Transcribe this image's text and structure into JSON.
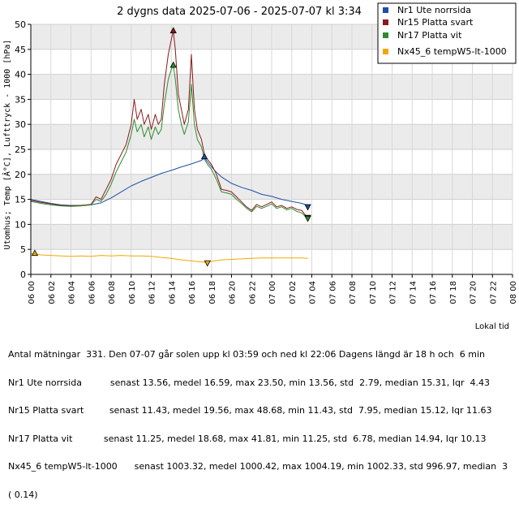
{
  "chart_data": {
    "type": "line",
    "title": "2 dygns data  2025-07-06 - 2025-07-07 kl 3:34",
    "ylabel": "Utomhus; Temp [Â°C], Lufttryck - 1000 [hPa]",
    "xlabel": "Lokal tid",
    "ylim": [
      0,
      50
    ],
    "yticks": [
      "0",
      "5",
      "10",
      "15",
      "20",
      "25",
      "30",
      "35",
      "40",
      "45",
      "50"
    ],
    "xticks": [
      "06 00",
      "06 02",
      "06 04",
      "06 06",
      "06 08",
      "06 10",
      "06 12",
      "06 14",
      "06 16",
      "06 18",
      "06 20",
      "06 22",
      "07 00",
      "07 02",
      "07 04",
      "07 06",
      "07 08",
      "07 10",
      "07 12",
      "07 14",
      "07 16",
      "07 18",
      "07 20",
      "07 22",
      "08 00"
    ],
    "grid": true,
    "legend_position": "top-right",
    "series": [
      {
        "name": "Nr1 Ute norrsida",
        "color": "#1f4fa8",
        "points": [
          [
            0,
            15.0
          ],
          [
            1,
            14.6
          ],
          [
            2,
            14.2
          ],
          [
            3,
            13.9
          ],
          [
            4,
            13.8
          ],
          [
            5,
            13.8
          ],
          [
            6,
            13.9
          ],
          [
            7,
            14.3
          ],
          [
            8,
            15.3
          ],
          [
            9,
            16.5
          ],
          [
            10,
            17.7
          ],
          [
            11,
            18.6
          ],
          [
            12,
            19.4
          ],
          [
            13,
            20.2
          ],
          [
            14,
            20.8
          ],
          [
            15,
            21.5
          ],
          [
            16,
            22.1
          ],
          [
            17,
            22.8
          ],
          [
            17.3,
            23.3
          ],
          [
            17.8,
            22.0
          ],
          [
            18.4,
            20.6
          ],
          [
            19,
            19.5
          ],
          [
            20,
            18.2
          ],
          [
            21,
            17.4
          ],
          [
            22,
            16.8
          ],
          [
            23,
            16.0
          ],
          [
            24,
            15.6
          ],
          [
            25,
            15.0
          ],
          [
            26,
            14.6
          ],
          [
            27,
            14.2
          ],
          [
            27.6,
            13.8
          ]
        ]
      },
      {
        "name": "Nr15 Platta svart",
        "color": "#8b1a1a",
        "points": [
          [
            0,
            14.8
          ],
          [
            1,
            14.4
          ],
          [
            2,
            14.1
          ],
          [
            3,
            13.8
          ],
          [
            4,
            13.7
          ],
          [
            5,
            13.8
          ],
          [
            6,
            14.0
          ],
          [
            6.5,
            15.5
          ],
          [
            7,
            15.0
          ],
          [
            7.5,
            17.0
          ],
          [
            8,
            19.0
          ],
          [
            8.5,
            22.0
          ],
          [
            9,
            24.0
          ],
          [
            9.5,
            26.0
          ],
          [
            10,
            30.0
          ],
          [
            10.3,
            35.0
          ],
          [
            10.6,
            31.0
          ],
          [
            11,
            33.0
          ],
          [
            11.3,
            30.0
          ],
          [
            11.7,
            32.0
          ],
          [
            12,
            29.0
          ],
          [
            12.4,
            32.0
          ],
          [
            12.7,
            30.0
          ],
          [
            13,
            31.0
          ],
          [
            13.3,
            38.0
          ],
          [
            13.7,
            44.0
          ],
          [
            14,
            47.0
          ],
          [
            14.2,
            48.68
          ],
          [
            14.4,
            45.0
          ],
          [
            14.7,
            36.0
          ],
          [
            15,
            33.0
          ],
          [
            15.3,
            30.0
          ],
          [
            15.7,
            33.0
          ],
          [
            16,
            44.0
          ],
          [
            16.3,
            33.0
          ],
          [
            16.6,
            29.0
          ],
          [
            17,
            27.0
          ],
          [
            17.3,
            24.0
          ],
          [
            17.6,
            23.0
          ],
          [
            18,
            22.0
          ],
          [
            18.5,
            20.0
          ],
          [
            19,
            17.0
          ],
          [
            19.5,
            16.8
          ],
          [
            20,
            16.5
          ],
          [
            20.5,
            15.5
          ],
          [
            21,
            14.5
          ],
          [
            21.5,
            13.5
          ],
          [
            22,
            12.8
          ],
          [
            22.5,
            14.0
          ],
          [
            23,
            13.5
          ],
          [
            23.5,
            14.0
          ],
          [
            24,
            14.5
          ],
          [
            24.5,
            13.5
          ],
          [
            25,
            13.8
          ],
          [
            25.5,
            13.2
          ],
          [
            26,
            13.5
          ],
          [
            26.5,
            13.0
          ],
          [
            27,
            12.8
          ],
          [
            27.3,
            12.0
          ],
          [
            27.6,
            11.43
          ]
        ]
      },
      {
        "name": "Nr17 Platta vit",
        "color": "#2e8b2e",
        "points": [
          [
            0,
            14.6
          ],
          [
            1,
            14.2
          ],
          [
            2,
            13.9
          ],
          [
            3,
            13.7
          ],
          [
            4,
            13.6
          ],
          [
            5,
            13.7
          ],
          [
            6,
            13.9
          ],
          [
            6.5,
            15.0
          ],
          [
            7,
            14.6
          ],
          [
            7.5,
            16.0
          ],
          [
            8,
            18.0
          ],
          [
            8.5,
            20.5
          ],
          [
            9,
            22.5
          ],
          [
            9.5,
            24.5
          ],
          [
            10,
            28.0
          ],
          [
            10.3,
            31.0
          ],
          [
            10.6,
            28.5
          ],
          [
            11,
            30.0
          ],
          [
            11.3,
            27.5
          ],
          [
            11.7,
            29.5
          ],
          [
            12,
            27.0
          ],
          [
            12.4,
            29.5
          ],
          [
            12.7,
            28.0
          ],
          [
            13,
            29.0
          ],
          [
            13.3,
            34.0
          ],
          [
            13.7,
            39.0
          ],
          [
            14,
            41.0
          ],
          [
            14.2,
            41.81
          ],
          [
            14.4,
            39.0
          ],
          [
            14.7,
            33.0
          ],
          [
            15,
            30.0
          ],
          [
            15.3,
            28.0
          ],
          [
            15.7,
            30.5
          ],
          [
            16,
            38.0
          ],
          [
            16.3,
            30.0
          ],
          [
            16.6,
            27.0
          ],
          [
            17,
            25.5
          ],
          [
            17.3,
            23.0
          ],
          [
            17.6,
            22.0
          ],
          [
            18,
            21.0
          ],
          [
            18.5,
            19.0
          ],
          [
            19,
            16.5
          ],
          [
            19.5,
            16.3
          ],
          [
            20,
            16.0
          ],
          [
            20.5,
            15.0
          ],
          [
            21,
            14.2
          ],
          [
            21.5,
            13.2
          ],
          [
            22,
            12.5
          ],
          [
            22.5,
            13.6
          ],
          [
            23,
            13.2
          ],
          [
            23.5,
            13.6
          ],
          [
            24,
            14.1
          ],
          [
            24.5,
            13.2
          ],
          [
            25,
            13.5
          ],
          [
            25.5,
            12.9
          ],
          [
            26,
            13.2
          ],
          [
            26.5,
            12.6
          ],
          [
            27,
            12.3
          ],
          [
            27.3,
            11.7
          ],
          [
            27.6,
            11.25
          ]
        ]
      },
      {
        "name": "Nx45_6 tempW5-lt-1000",
        "color": "#f0a800",
        "points": [
          [
            0,
            4.2
          ],
          [
            1,
            3.9
          ],
          [
            2,
            3.8
          ],
          [
            3,
            3.7
          ],
          [
            4,
            3.6
          ],
          [
            5,
            3.7
          ],
          [
            6,
            3.6
          ],
          [
            7,
            3.8
          ],
          [
            8,
            3.7
          ],
          [
            9,
            3.8
          ],
          [
            10,
            3.7
          ],
          [
            11,
            3.7
          ],
          [
            12,
            3.6
          ],
          [
            13,
            3.4
          ],
          [
            14,
            3.2
          ],
          [
            15,
            2.9
          ],
          [
            16,
            2.7
          ],
          [
            17,
            2.5
          ],
          [
            17.5,
            2.4
          ],
          [
            18,
            2.6
          ],
          [
            19,
            2.9
          ],
          [
            20,
            3.0
          ],
          [
            21,
            3.1
          ],
          [
            22,
            3.2
          ],
          [
            23,
            3.3
          ],
          [
            24,
            3.3
          ],
          [
            25,
            3.3
          ],
          [
            26,
            3.3
          ],
          [
            27,
            3.3
          ],
          [
            27.6,
            3.2
          ]
        ]
      }
    ],
    "markers": [
      {
        "series": 0,
        "kind": "max",
        "at": [
          17.3,
          23.5
        ]
      },
      {
        "series": 0,
        "kind": "min",
        "at": [
          27.6,
          13.56
        ]
      },
      {
        "series": 1,
        "kind": "max",
        "at": [
          14.2,
          48.68
        ]
      },
      {
        "series": 1,
        "kind": "min",
        "at": [
          27.6,
          11.43
        ]
      },
      {
        "series": 2,
        "kind": "max",
        "at": [
          14.2,
          41.81
        ]
      },
      {
        "series": 2,
        "kind": "min",
        "at": [
          27.6,
          11.25
        ]
      },
      {
        "series": 3,
        "kind": "max",
        "at": [
          0.4,
          4.19
        ]
      },
      {
        "series": 3,
        "kind": "min",
        "at": [
          17.6,
          2.33
        ]
      }
    ]
  },
  "stats_lines": [
    "Antal mätningar  331. Den 07-07 går solen upp kl 03:59 och ned kl 22:06 Dagens längd är 18 h och  6 min",
    "Nr1 Ute norrsida          senast 13.56, medel 16.59, max 23.50, min 13.56, std  2.79, median 15.31, Iqr  4.43",
    "Nr15 Platta svart         senast 11.43, medel 19.56, max 48.68, min 11.43, std  7.95, median 15.12, Iqr 11.63",
    "Nr17 Platta vit           senast 11.25, medel 18.68, max 41.81, min 11.25, std  6.78, median 14.94, Iqr 10.13",
    "Nx45_6 tempW5-lt-1000      senast 1003.32, medel 1000.42, max 1004.19, min 1002.33, std 996.97, median  3",
    "( 0.14)"
  ]
}
